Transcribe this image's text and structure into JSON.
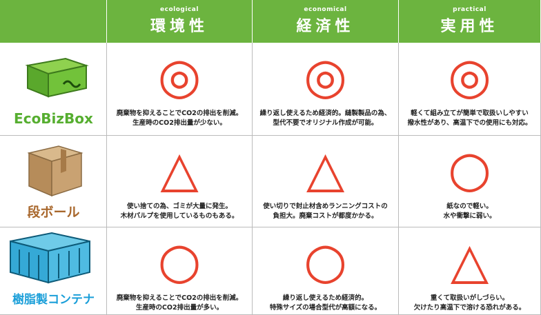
{
  "header": {
    "columns": [
      {
        "en": "ecological",
        "ja": "環境性"
      },
      {
        "en": "economical",
        "ja": "経済性"
      },
      {
        "en": "practical",
        "ja": "実用性"
      }
    ]
  },
  "rows": [
    {
      "label": "EcoBizBox",
      "cells": [
        {
          "rating": "◎",
          "lines": [
            "廃棄物を抑えることでCO2の排出を削減。",
            "生産時のCO2排出量が少ない。"
          ]
        },
        {
          "rating": "◎",
          "lines": [
            "繰り返し使えるため経済的。縫製製品の為、",
            "型代不要でオリジナル作成が可能。"
          ]
        },
        {
          "rating": "◎",
          "lines": [
            "軽くて組み立てが簡単で取扱いしやすい",
            "撥水性があり、高温下での使用にも対応。"
          ]
        }
      ]
    },
    {
      "label": "段ボール",
      "cells": [
        {
          "rating": "△",
          "lines": [
            "使い捨ての為、ゴミが大量に発生。",
            "木材パルプを使用しているものもある。"
          ]
        },
        {
          "rating": "△",
          "lines": [
            "使い切りで封止材含めランニングコストの",
            "負担大。廃棄コストが都度かかる。"
          ]
        },
        {
          "rating": "○",
          "lines": [
            "紙なので軽い。",
            "水や衝撃に弱い。"
          ]
        }
      ]
    },
    {
      "label": "樹脂製コンテナ",
      "cells": [
        {
          "rating": "○",
          "lines": [
            "廃棄物を抑えることでCO2の排出を削減。",
            "生産時のCO2排出量が多い。"
          ]
        },
        {
          "rating": "○",
          "lines": [
            "繰り返し使えるため経済的。",
            "特殊サイズの場合型代が高額になる。"
          ]
        },
        {
          "rating": "△",
          "lines": [
            "重くて取扱いがしづらい。",
            "欠けたり高温下で溶ける恐れがある。"
          ]
        }
      ]
    }
  ]
}
